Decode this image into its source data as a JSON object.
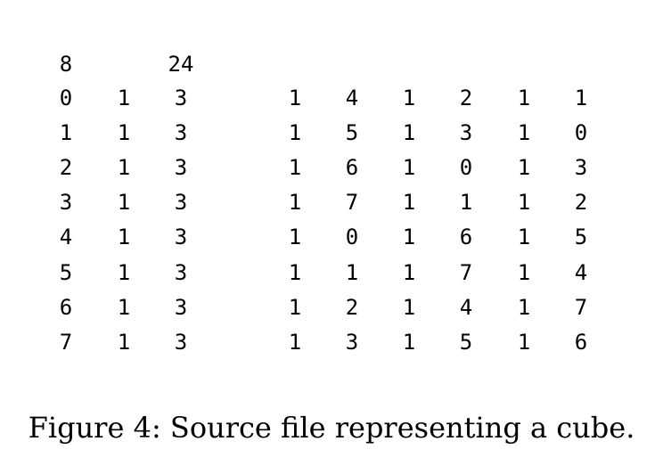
{
  "source_file": {
    "header": [
      "8",
      "",
      "24"
    ],
    "rows": [
      [
        "0",
        "1",
        "3",
        "1",
        "4",
        "1",
        "2",
        "1",
        "1"
      ],
      [
        "1",
        "1",
        "3",
        "1",
        "5",
        "1",
        "3",
        "1",
        "0"
      ],
      [
        "2",
        "1",
        "3",
        "1",
        "6",
        "1",
        "0",
        "1",
        "3"
      ],
      [
        "3",
        "1",
        "3",
        "1",
        "7",
        "1",
        "1",
        "1",
        "2"
      ],
      [
        "4",
        "1",
        "3",
        "1",
        "0",
        "1",
        "6",
        "1",
        "5"
      ],
      [
        "5",
        "1",
        "3",
        "1",
        "1",
        "1",
        "7",
        "1",
        "4"
      ],
      [
        "6",
        "1",
        "3",
        "1",
        "2",
        "1",
        "4",
        "1",
        "7"
      ],
      [
        "7",
        "1",
        "3",
        "1",
        "3",
        "1",
        "5",
        "1",
        "6"
      ]
    ]
  },
  "caption": "Figure 4: Source file representing a cube."
}
